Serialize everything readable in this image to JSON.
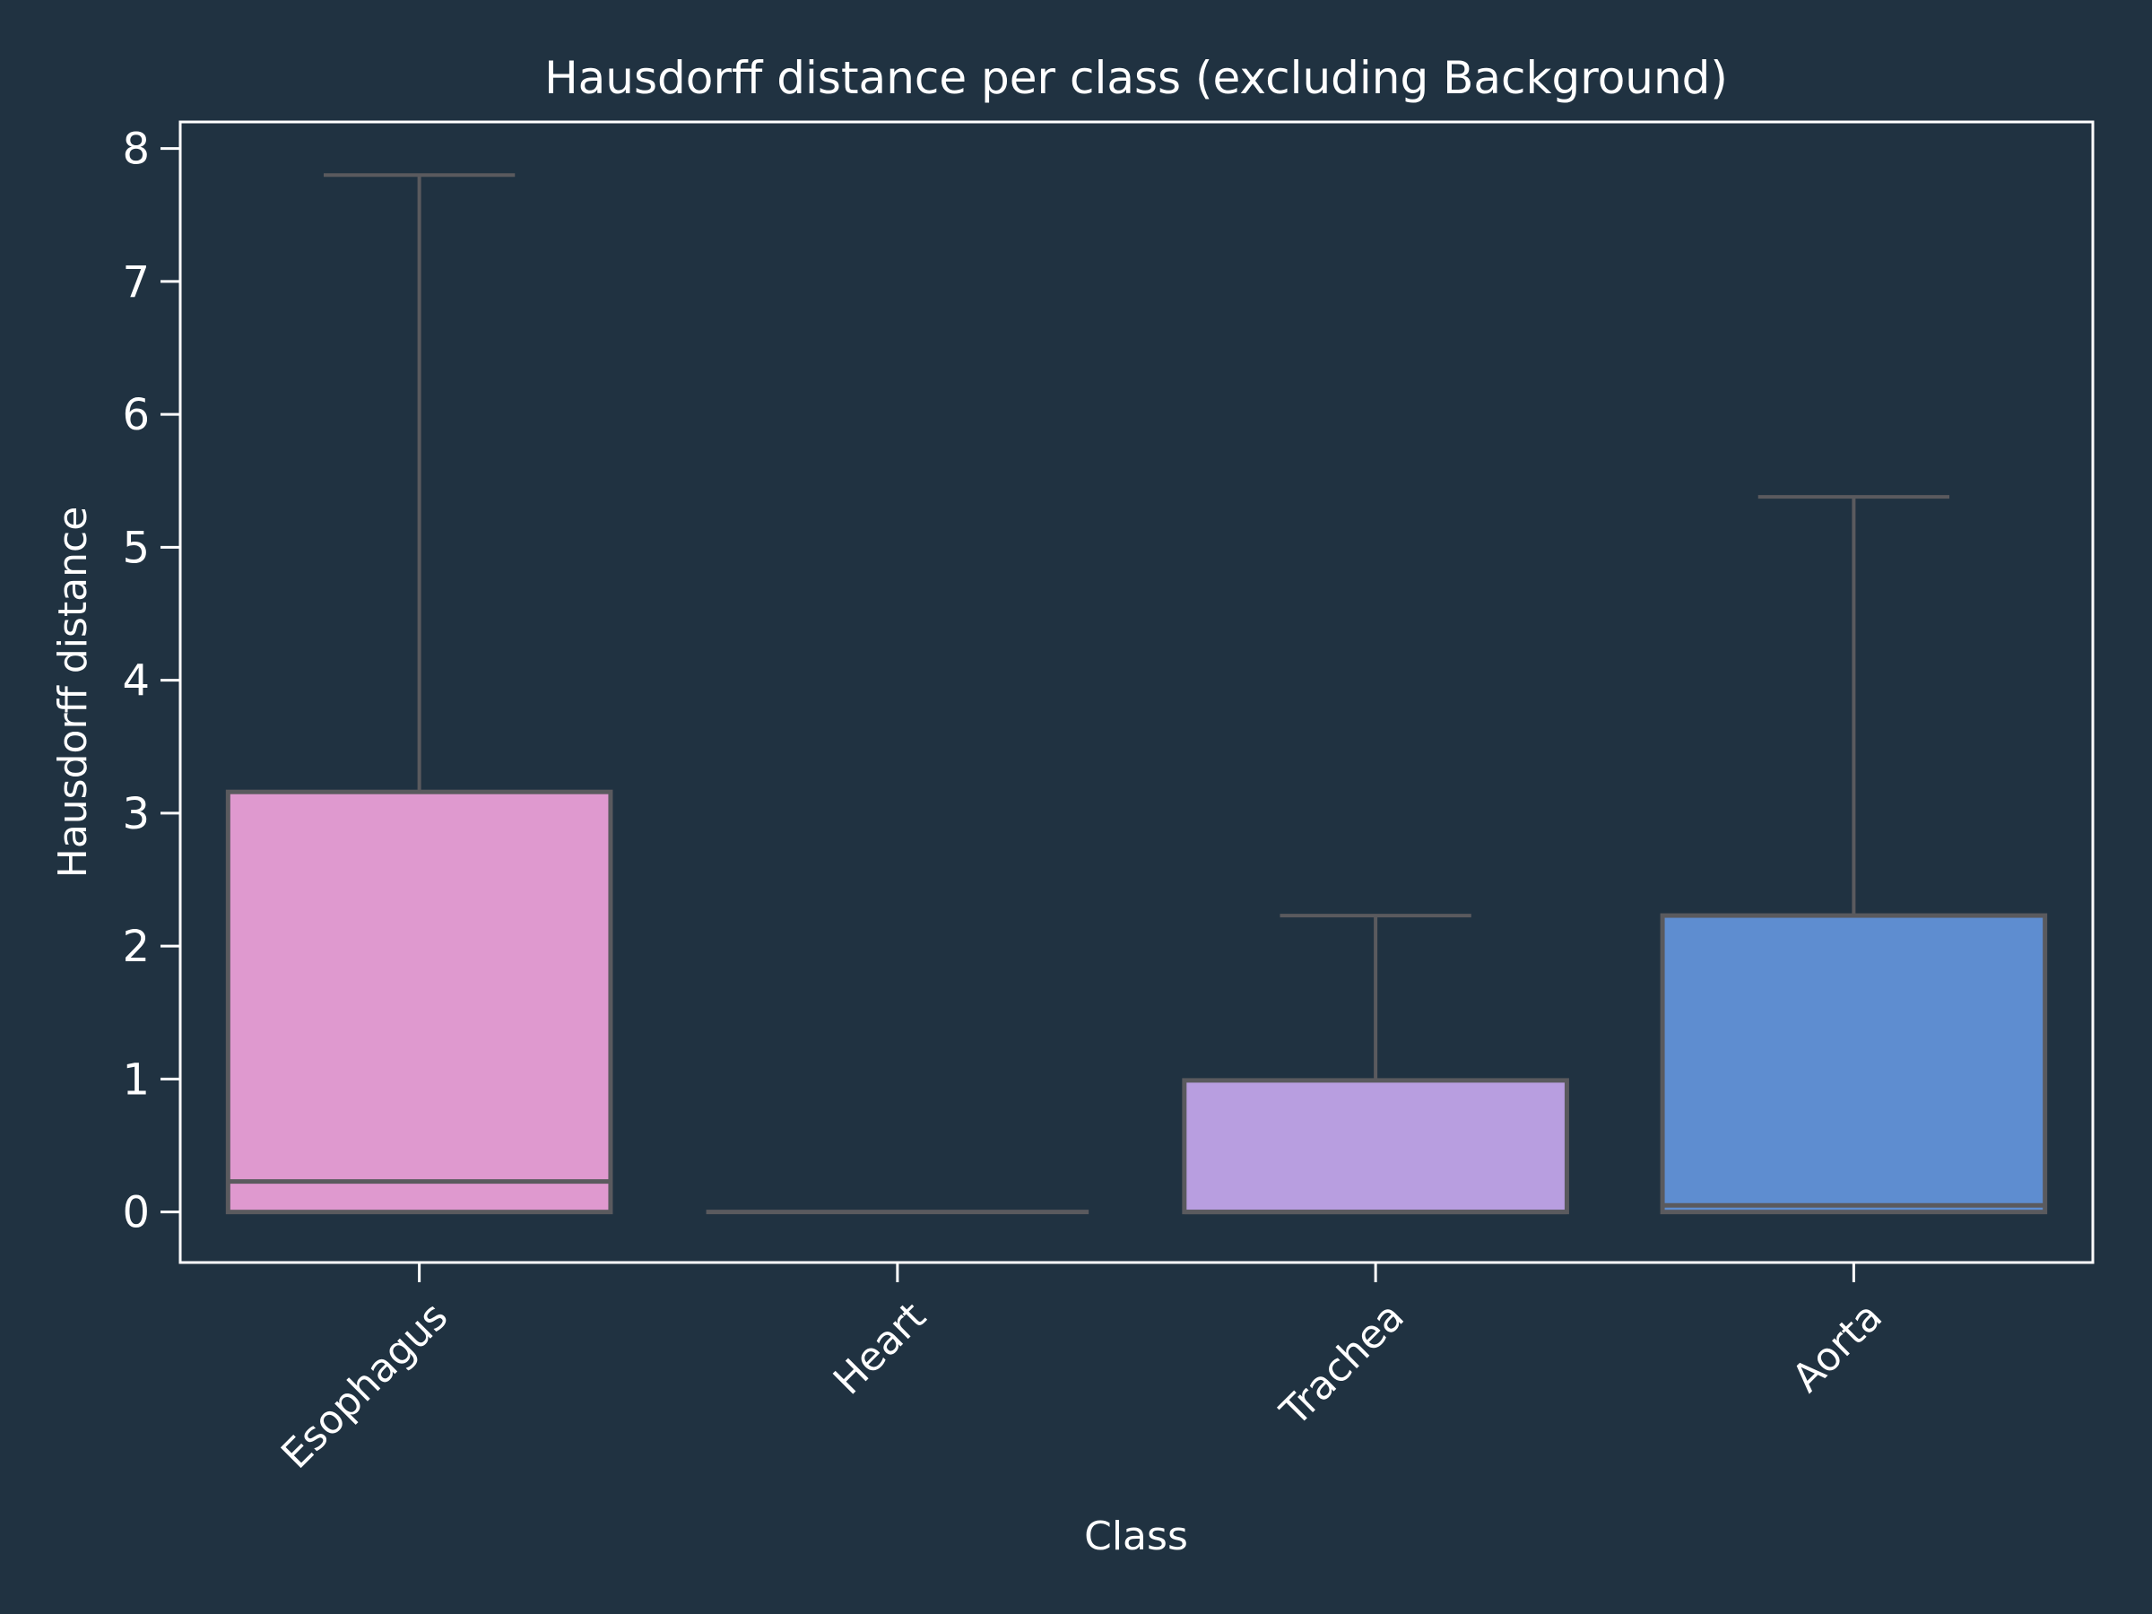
{
  "chart_data": {
    "type": "box",
    "title": "Hausdorff distance per class (excluding Background)",
    "xlabel": "Class",
    "ylabel": "Hausdorff distance",
    "ylim": [
      -0.38,
      8.2
    ],
    "yticks": [
      0,
      1,
      2,
      3,
      4,
      5,
      6,
      7,
      8
    ],
    "grid": false,
    "categories": [
      "Esophagus",
      "Heart",
      "Trachea",
      "Aorta"
    ],
    "boxes": [
      {
        "category": "Esophagus",
        "whisker_low": 0,
        "q1": 0,
        "median": 0.23,
        "q3": 3.16,
        "whisker_high": 7.8,
        "color": "#df99cf"
      },
      {
        "category": "Heart",
        "whisker_low": 0,
        "q1": 0,
        "median": 0,
        "q3": 0,
        "whisker_high": 0,
        "color": "#6e8fce"
      },
      {
        "category": "Trachea",
        "whisker_low": 0,
        "q1": 0,
        "median": 0,
        "q3": 0.99,
        "whisker_high": 2.23,
        "color": "#b89ee0"
      },
      {
        "category": "Aorta",
        "whisker_low": 0,
        "q1": 0,
        "median": 0.05,
        "q3": 2.23,
        "whisker_high": 5.38,
        "color": "#5e8dd0"
      }
    ],
    "colors": {
      "background": "#203241",
      "axes": "#ffffff",
      "box_edge": "#5a5a5e"
    }
  }
}
